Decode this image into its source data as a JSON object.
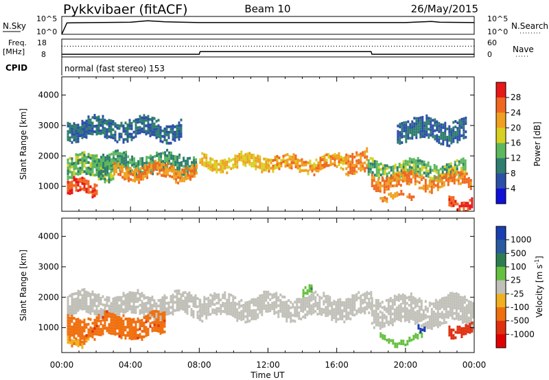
{
  "header": {
    "station": "Pykkvibaer (fitACF)",
    "beam": "Beam 10",
    "date": "26/May/2015"
  },
  "strips": {
    "nsky_label": "N.Sky",
    "nsearch_label": "N.Search",
    "noise_ticks": [
      "10^5",
      "10^0"
    ],
    "freq_label_1": "Freq.",
    "freq_label_2": "[MHz]",
    "freq_ticks": [
      "18",
      "8"
    ],
    "nave_label": "Nave",
    "nave_ticks": [
      "60",
      "0"
    ],
    "cpid_label": "CPID",
    "cpid_value": "normal (fast stereo) 153"
  },
  "axes": {
    "xlabel": "Time UT",
    "ylabel": "Slant Range [km]",
    "x_ticks": [
      "00:00",
      "04:00",
      "08:00",
      "12:00",
      "16:00",
      "20:00",
      "00:00"
    ],
    "y_ticks": [
      "1000",
      "2000",
      "3000",
      "4000"
    ]
  },
  "colorbars": {
    "power_label": "Power [dB]",
    "power_ticks": [
      "4",
      "8",
      "12",
      "16",
      "20",
      "24",
      "28"
    ],
    "power_colors": [
      "#1010d8",
      "#2c4fa8",
      "#2e7d6e",
      "#5cb85c",
      "#d8d020",
      "#f0a020",
      "#f06820",
      "#e81818"
    ],
    "velocity_label": "Velocity [m s",
    "velocity_label_sup": "-1",
    "velocity_label_end": "]",
    "velocity_ticks": [
      "1000",
      "500",
      "100",
      "25",
      "-25",
      "-100",
      "-500",
      "-1000"
    ],
    "velocity_colors": [
      "#1a3fb0",
      "#2a5aa0",
      "#2e7d50",
      "#66c040",
      "#c0c0b8",
      "#f0b020",
      "#f07010",
      "#e03010",
      "#e00000"
    ]
  },
  "chart_data": [
    {
      "type": "line",
      "title": "N.Sky / N.Search",
      "x": [
        0,
        0.3,
        2,
        4,
        5,
        6,
        8,
        12,
        16,
        20,
        21.5,
        22,
        24
      ],
      "series": [
        {
          "name": "N.Sky",
          "values": [
            0,
            3.2,
            3.3,
            3.4,
            3.8,
            3.5,
            3.3,
            3.3,
            3.3,
            3.3,
            3.6,
            3.4,
            3.3
          ]
        }
      ],
      "xlim": [
        0,
        24
      ],
      "ylim": [
        0,
        5
      ],
      "y_scale": "log10"
    },
    {
      "type": "line",
      "title": "Freq. / Nave",
      "x": [
        0,
        0.3,
        8,
        8.05,
        18,
        18.05,
        24
      ],
      "series": [
        {
          "name": "Freq.",
          "values": [
            9.5,
            9.5,
            9.5,
            11.0,
            11.0,
            9.5,
            9.5
          ]
        },
        {
          "name": "Nave",
          "values": [
            36,
            36,
            36,
            36,
            36,
            36,
            36
          ]
        }
      ],
      "xlim": [
        0,
        24
      ],
      "ylim": [
        8,
        18
      ]
    },
    {
      "type": "heatmap",
      "title": "Power [dB]",
      "xlabel": "Time UT",
      "ylabel": "Slant Range [km]",
      "xlim": [
        0,
        24
      ],
      "ylim": [
        180,
        4600
      ],
      "clim": [
        0,
        32
      ],
      "bands": [
        {
          "t0": 0.3,
          "t1": 3,
          "r0": 1300,
          "r1": 2000,
          "value": 14
        },
        {
          "t0": 0.3,
          "t1": 2,
          "r0": 750,
          "r1": 1150,
          "value": 28
        },
        {
          "t0": 2,
          "t1": 7.8,
          "r0": 1500,
          "r1": 2050,
          "value": 12
        },
        {
          "t0": 3,
          "t1": 7.8,
          "r0": 1250,
          "r1": 1700,
          "value": 24
        },
        {
          "t0": 8,
          "t1": 12,
          "r0": 1550,
          "r1": 2000,
          "value": 20
        },
        {
          "t0": 12,
          "t1": 16.5,
          "r0": 1500,
          "r1": 1950,
          "value": 22
        },
        {
          "t0": 16.5,
          "t1": 17.7,
          "r0": 1550,
          "r1": 2200,
          "value": 24
        },
        {
          "t0": 17.8,
          "t1": 23.5,
          "r0": 1300,
          "r1": 1800,
          "value": 14
        },
        {
          "t0": 18,
          "t1": 23.8,
          "r0": 1000,
          "r1": 1400,
          "value": 24
        },
        {
          "t0": 18.5,
          "t1": 20.5,
          "r0": 560,
          "r1": 700,
          "value": 24
        },
        {
          "t0": 22.5,
          "t1": 23.9,
          "r0": 300,
          "r1": 650,
          "value": 30
        },
        {
          "t0": 0.3,
          "t1": 7,
          "r0": 2600,
          "r1": 3200,
          "value": 8
        },
        {
          "t0": 19.5,
          "t1": 23.5,
          "r0": 2500,
          "r1": 3200,
          "value": 8
        }
      ]
    },
    {
      "type": "heatmap",
      "title": "Velocity [m s-1]",
      "xlabel": "Time UT",
      "ylabel": "Slant Range [km]",
      "xlim": [
        0,
        24
      ],
      "ylim": [
        180,
        4600
      ],
      "clim": [
        -1000,
        1000
      ],
      "bands": [
        {
          "t0": 0.3,
          "t1": 8,
          "r0": 1450,
          "r1": 2100,
          "value": 0
        },
        {
          "t0": 8,
          "t1": 18,
          "r0": 1400,
          "r1": 2050,
          "value": 0
        },
        {
          "t0": 18,
          "t1": 24,
          "r0": 1100,
          "r1": 2000,
          "value": 0
        },
        {
          "t0": 0.3,
          "t1": 6,
          "r0": 700,
          "r1": 1400,
          "value": -500
        },
        {
          "t0": 0.3,
          "t1": 1.5,
          "r0": 500,
          "r1": 750,
          "value": -300
        },
        {
          "t0": 22.5,
          "t1": 23.9,
          "r0": 850,
          "r1": 1150,
          "value": -700
        },
        {
          "t0": 18.5,
          "t1": 21,
          "r0": 550,
          "r1": 700,
          "value": 200
        },
        {
          "t0": 20.7,
          "t1": 21.1,
          "r0": 800,
          "r1": 950,
          "value": 900
        },
        {
          "t0": 14,
          "t1": 14.5,
          "r0": 2050,
          "r1": 2250,
          "value": 300
        }
      ]
    }
  ]
}
